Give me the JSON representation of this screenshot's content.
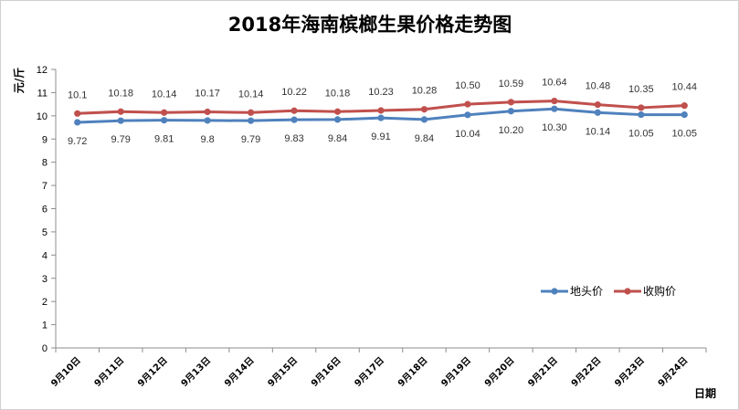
{
  "chart_data": {
    "type": "line",
    "title": "2018年海南槟榔生果价格走势图",
    "ylabel": "元/斤",
    "xlabel": "日期",
    "ylim": [
      0,
      12
    ],
    "ystep": 1,
    "categories": [
      "9月10日",
      "9月11日",
      "9月12日",
      "9月13日",
      "9月14日",
      "9月15日",
      "9月16日",
      "9月17日",
      "9月18日",
      "9月19日",
      "9月20日",
      "9月21日",
      "9月22日",
      "9月23日",
      "9月24日"
    ],
    "series": [
      {
        "name": "地头价",
        "color": "#4f81bd",
        "values": [
          9.72,
          9.79,
          9.81,
          9.8,
          9.79,
          9.83,
          9.84,
          9.91,
          9.84,
          10.04,
          10.2,
          10.3,
          10.14,
          10.05,
          10.05
        ],
        "labels": [
          "9.72",
          "9.79",
          "9.81",
          "9.8",
          "9.79",
          "9.83",
          "9.84",
          "9.91",
          "9.84",
          "10.04",
          "10.20",
          "10.30",
          "10.14",
          "10.05",
          "10.05"
        ],
        "label_position": "below"
      },
      {
        "name": "收购价",
        "color": "#c0504d",
        "values": [
          10.1,
          10.18,
          10.14,
          10.17,
          10.14,
          10.22,
          10.18,
          10.23,
          10.28,
          10.5,
          10.59,
          10.64,
          10.48,
          10.35,
          10.44
        ],
        "labels": [
          "10.1",
          "10.18",
          "10.14",
          "10.17",
          "10.14",
          "10.22",
          "10.18",
          "10.23",
          "10.28",
          "10.50",
          "10.59",
          "10.64",
          "10.48",
          "10.35",
          "10.44"
        ],
        "label_position": "above"
      }
    ],
    "grid": false,
    "legend_position": "right"
  }
}
